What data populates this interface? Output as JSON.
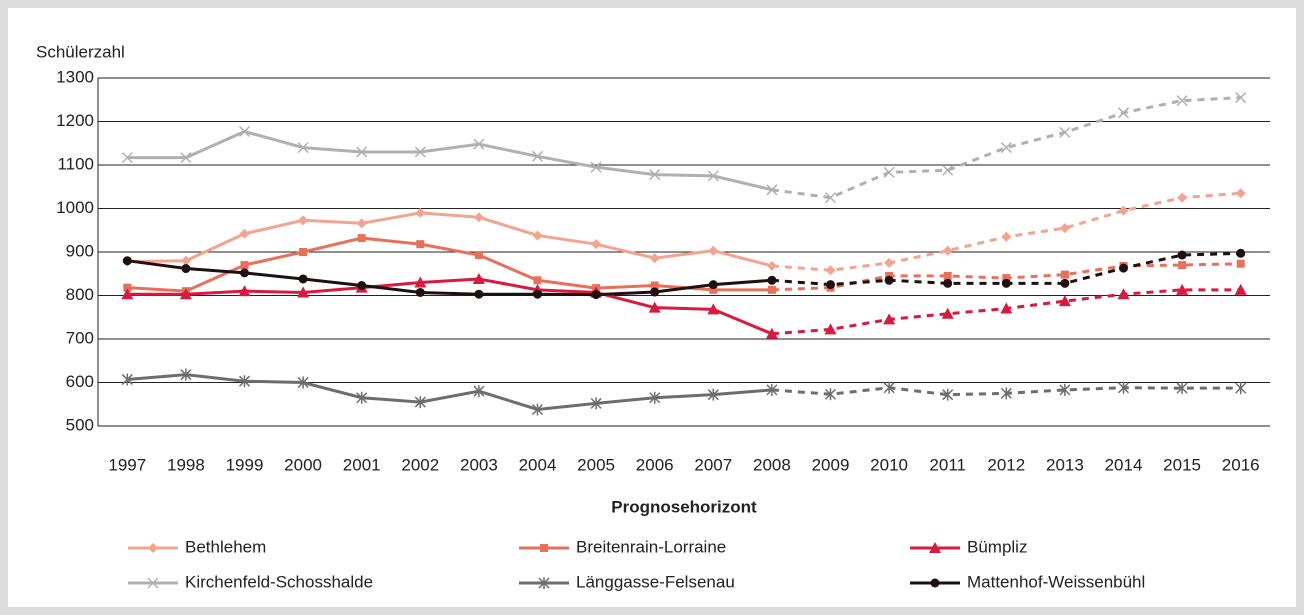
{
  "chart_data": {
    "type": "line",
    "y_label": "Schülerzahl",
    "x_label": "Prognosehorizont",
    "categories": [
      "1997",
      "1998",
      "1999",
      "2000",
      "2001",
      "2002",
      "2003",
      "2004",
      "2005",
      "2006",
      "2007",
      "2008",
      "2009",
      "2010",
      "2011",
      "2012",
      "2013",
      "2014",
      "2015",
      "2016"
    ],
    "projection_start": "2008",
    "ylim": [
      500,
      1300
    ],
    "yticks": [
      500,
      600,
      700,
      800,
      900,
      1000,
      1100,
      1200,
      1300
    ],
    "grid": true,
    "series": [
      {
        "name": "Bethlehem",
        "color": "#f4a38e",
        "marker": "diamond",
        "values": [
          878,
          880,
          942,
          973,
          966,
          990,
          980,
          938,
          918,
          886,
          903,
          868,
          858,
          875,
          903,
          935,
          955,
          995,
          1025,
          1035
        ]
      },
      {
        "name": "Breitenrain-Lorraine",
        "color": "#e8705a",
        "marker": "square",
        "values": [
          818,
          810,
          870,
          900,
          932,
          918,
          893,
          835,
          817,
          823,
          813,
          813,
          818,
          845,
          845,
          840,
          848,
          868,
          870,
          873
        ]
      },
      {
        "name": "Bümpliz",
        "color": "#d9193e",
        "marker": "triangle",
        "values": [
          803,
          803,
          810,
          807,
          818,
          830,
          838,
          813,
          807,
          772,
          768,
          712,
          722,
          745,
          758,
          770,
          787,
          803,
          813,
          813
        ]
      },
      {
        "name": "Kirchenfeld-Schosshalde",
        "color": "#b0b0b0",
        "marker": "x",
        "values": [
          1117,
          1117,
          1177,
          1140,
          1130,
          1130,
          1148,
          1120,
          1095,
          1078,
          1075,
          1043,
          1025,
          1083,
          1088,
          1140,
          1175,
          1220,
          1248,
          1255
        ]
      },
      {
        "name": "Länggasse-Felsenau",
        "color": "#6d6d6d",
        "marker": "star",
        "values": [
          607,
          618,
          603,
          600,
          565,
          555,
          580,
          538,
          552,
          565,
          572,
          583,
          573,
          588,
          572,
          575,
          583,
          588,
          587,
          587
        ]
      },
      {
        "name": "Mattenhof-Weissenbühl",
        "color": "#1e1010",
        "marker": "circle",
        "values": [
          880,
          862,
          852,
          838,
          823,
          807,
          803,
          803,
          802,
          808,
          825,
          835,
          825,
          835,
          828,
          828,
          828,
          863,
          893,
          897
        ]
      }
    ]
  }
}
